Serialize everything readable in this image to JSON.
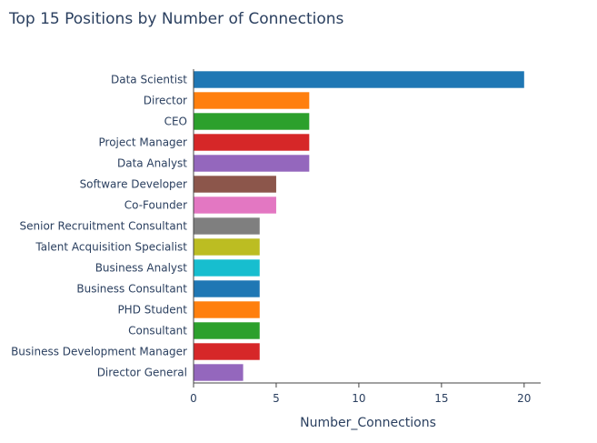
{
  "chart_data": {
    "type": "bar",
    "orientation": "horizontal",
    "title": "Top 15 Positions by Number of Connections",
    "xlabel": "Number_Connections",
    "ylabel": "",
    "xlim": [
      0,
      21
    ],
    "xticks": [
      0,
      5,
      10,
      15,
      20
    ],
    "grid": false,
    "legend": "none",
    "categories": [
      "Data Scientist",
      "Director",
      "CEO",
      "Project Manager",
      "Data Analyst",
      "Software Developer",
      "Co-Founder",
      "Senior Recruitment Consultant",
      "Talent Acquisition Specialist",
      "Business Analyst",
      "Business Consultant",
      "PHD Student",
      "Consultant",
      "Business Development Manager",
      "Director General"
    ],
    "values": [
      20,
      7,
      7,
      7,
      7,
      5,
      5,
      4,
      4,
      4,
      4,
      4,
      4,
      4,
      3
    ],
    "colors": [
      "#1f77b4",
      "#ff7f0e",
      "#2ca02c",
      "#d62728",
      "#9467bd",
      "#8c564b",
      "#e377c2",
      "#7f7f7f",
      "#bcbd22",
      "#17becf",
      "#1f77b4",
      "#ff7f0e",
      "#2ca02c",
      "#d62728",
      "#9467bd"
    ]
  }
}
